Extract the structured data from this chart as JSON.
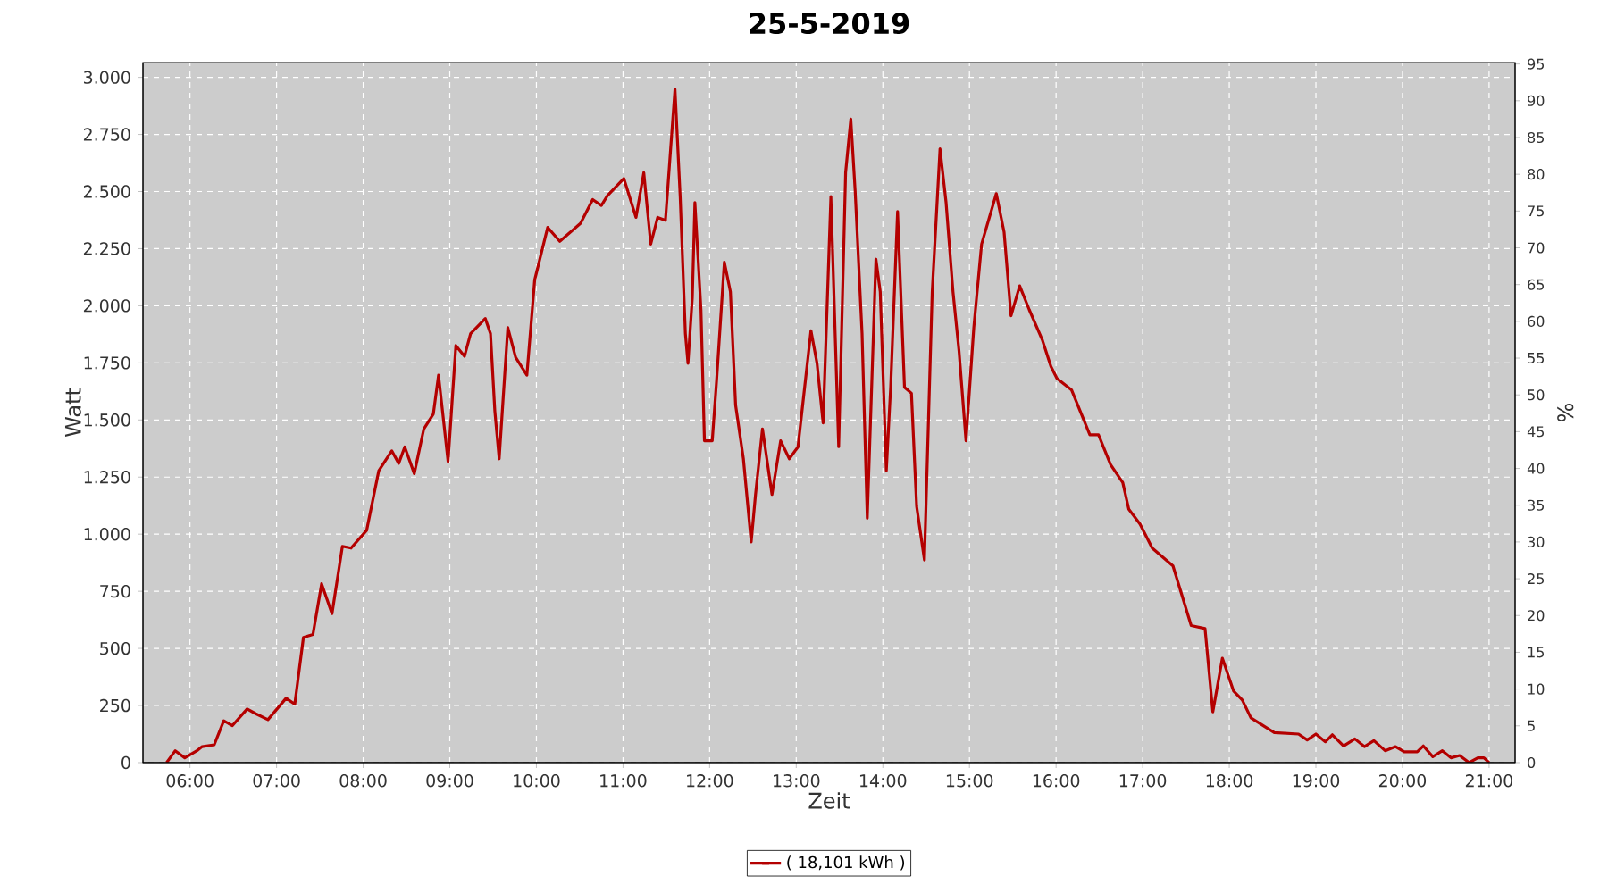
{
  "chart_data": {
    "type": "line",
    "title": "25-5-2019",
    "xlabel": "Zeit",
    "ylabel": "Watt",
    "y2label": "%",
    "x": [
      5.73,
      5.83,
      5.94,
      6.08,
      6.14,
      6.28,
      6.39,
      6.49,
      6.66,
      6.76,
      6.9,
      7.11,
      7.21,
      7.31,
      7.42,
      7.52,
      7.64,
      7.76,
      7.86,
      8.04,
      8.18,
      8.33,
      8.41,
      8.48,
      8.59,
      8.7,
      8.81,
      8.87,
      8.98,
      9.07,
      9.17,
      9.24,
      9.41,
      9.47,
      9.52,
      9.57,
      9.67,
      9.76,
      9.89,
      9.98,
      10.13,
      10.27,
      10.51,
      10.65,
      10.75,
      10.82,
      11.01,
      11.15,
      11.24,
      11.32,
      11.4,
      11.49,
      11.54,
      11.6,
      11.66,
      11.72,
      11.75,
      11.8,
      11.83,
      11.9,
      11.94,
      12.03,
      12.08,
      12.17,
      12.24,
      12.3,
      12.39,
      12.48,
      12.53,
      12.61,
      12.72,
      12.82,
      12.92,
      13.02,
      13.17,
      13.24,
      13.31,
      13.4,
      13.49,
      13.57,
      13.63,
      13.68,
      13.76,
      13.82,
      13.92,
      13.97,
      14.04,
      14.09,
      14.17,
      14.25,
      14.33,
      14.39,
      14.48,
      14.57,
      14.66,
      14.73,
      14.81,
      14.88,
      14.96,
      15.05,
      15.14,
      15.31,
      15.4,
      15.48,
      15.58,
      15.69,
      15.84,
      15.94,
      16.01,
      16.18,
      16.39,
      16.49,
      16.63,
      16.77,
      16.84,
      16.97,
      17.11,
      17.35,
      17.56,
      17.72,
      17.81,
      17.92,
      18.05,
      18.15,
      18.25,
      18.52,
      18.8,
      18.9,
      19.0,
      19.11,
      19.19,
      19.32,
      19.45,
      19.56,
      19.67,
      19.8,
      19.92,
      20.02,
      20.17,
      20.24,
      20.35,
      20.46,
      20.56,
      20.66,
      20.77,
      20.87,
      20.94,
      21.0
    ],
    "series": [
      {
        "name": "( 18,101 kWh )",
        "color": "#b40000",
        "values": [
          0,
          52,
          21,
          52,
          70,
          78,
          183,
          162,
          235,
          214,
          188,
          282,
          256,
          548,
          561,
          783,
          652,
          947,
          939,
          1017,
          1278,
          1365,
          1310,
          1382,
          1265,
          1461,
          1526,
          1696,
          1318,
          1826,
          1779,
          1878,
          1944,
          1878,
          1539,
          1330,
          1904,
          1774,
          1696,
          2113,
          2343,
          2282,
          2361,
          2465,
          2439,
          2482,
          2557,
          2387,
          2583,
          2270,
          2387,
          2374,
          2635,
          2948,
          2478,
          1878,
          1748,
          2035,
          2452,
          1983,
          1409,
          1409,
          1670,
          2191,
          2061,
          1565,
          1330,
          966,
          1174,
          1461,
          1174,
          1409,
          1330,
          1382,
          1891,
          1748,
          1487,
          2478,
          1383,
          2583,
          2817,
          2504,
          1878,
          1070,
          2204,
          2061,
          1278,
          1643,
          2413,
          1643,
          1617,
          1122,
          887,
          2061,
          2687,
          2452,
          2061,
          1800,
          1409,
          1904,
          2270,
          2491,
          2322,
          1956,
          2087,
          1983,
          1852,
          1735,
          1682,
          1631,
          1435,
          1435,
          1304,
          1226,
          1109,
          1044,
          939,
          861,
          600,
          587,
          222,
          457,
          313,
          274,
          196,
          131,
          125,
          99,
          125,
          91,
          122,
          73,
          104,
          70,
          96,
          52,
          70,
          47,
          47,
          73,
          26,
          52,
          21,
          31,
          0,
          21,
          21,
          0
        ]
      }
    ],
    "xlim": [
      5.457,
      21.3
    ],
    "xticks": [
      {
        "value": 6,
        "label": "06:00"
      },
      {
        "value": 7,
        "label": "07:00"
      },
      {
        "value": 8,
        "label": "08:00"
      },
      {
        "value": 9,
        "label": "09:00"
      },
      {
        "value": 10,
        "label": "10:00"
      },
      {
        "value": 11,
        "label": "11:00"
      },
      {
        "value": 12,
        "label": "12:00"
      },
      {
        "value": 13,
        "label": "13:00"
      },
      {
        "value": 14,
        "label": "14:00"
      },
      {
        "value": 15,
        "label": "15:00"
      },
      {
        "value": 16,
        "label": "16:00"
      },
      {
        "value": 17,
        "label": "17:00"
      },
      {
        "value": 18,
        "label": "18:00"
      },
      {
        "value": 19,
        "label": "19:00"
      },
      {
        "value": 20,
        "label": "20:00"
      },
      {
        "value": 21,
        "label": "21:00"
      }
    ],
    "ylim": [
      0,
      3065
    ],
    "yticks": [
      0,
      250,
      500,
      750,
      {
        "value": 1000,
        "label": "1.000"
      },
      {
        "value": 1250,
        "label": "1.250"
      },
      {
        "value": 1500,
        "label": "1.500"
      },
      {
        "value": 1750,
        "label": "1.750"
      },
      {
        "value": 2000,
        "label": "2.000"
      },
      {
        "value": 2250,
        "label": "2.250"
      },
      {
        "value": 2500,
        "label": "2.500"
      },
      {
        "value": 2750,
        "label": "2.750"
      },
      {
        "value": 3000,
        "label": "3.000"
      }
    ],
    "y2lim": [
      0,
      95.2
    ],
    "y2ticks": [
      0,
      5,
      10,
      15,
      20,
      25,
      30,
      35,
      40,
      45,
      50,
      55,
      60,
      65,
      70,
      75,
      80,
      85,
      90,
      95
    ],
    "grid": true,
    "legend": "bottom",
    "marker": "none",
    "line_style": "solid"
  }
}
